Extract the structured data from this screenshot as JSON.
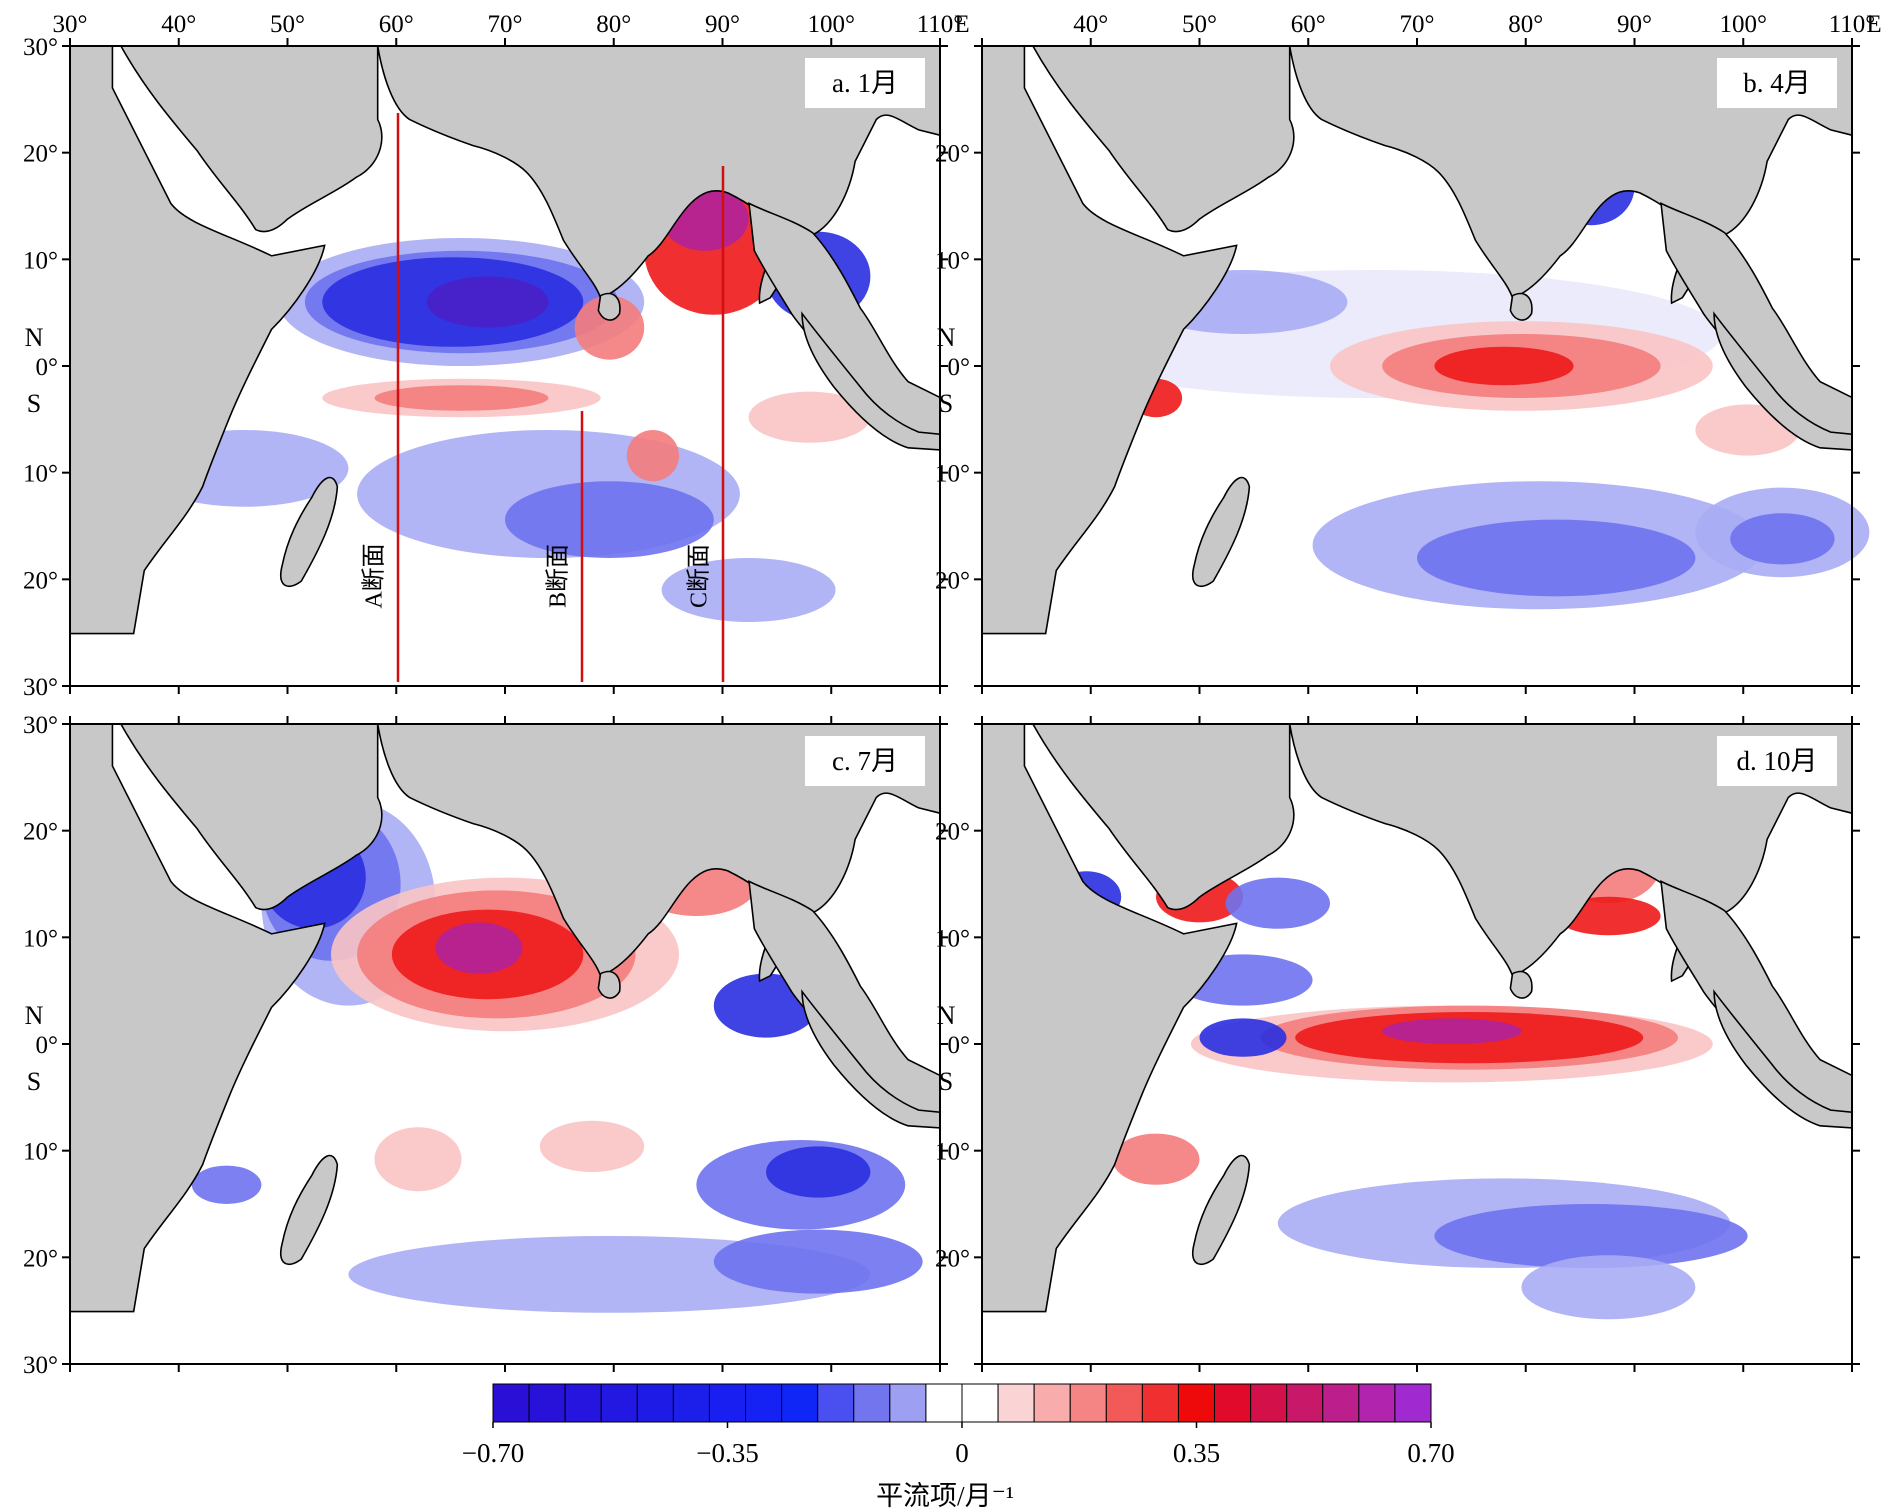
{
  "figure": {
    "lon_ticks_top": [
      "30°",
      "40°",
      "50°",
      "60°",
      "70°",
      "80°",
      "90°",
      "100°",
      "110°"
    ],
    "lon_ticks_top_right": [
      "40°",
      "50°",
      "60°",
      "70°",
      "80°",
      "90°",
      "100°",
      "110°"
    ],
    "lon_unit": "E",
    "lat_ticks": [
      "30°",
      "20°",
      "10°",
      "0°",
      "10°",
      "20°",
      "30°"
    ],
    "hemisphere": {
      "north": "N",
      "south": "S"
    },
    "panels": [
      {
        "id": "a",
        "label": "a. 1月"
      },
      {
        "id": "b",
        "label": "b. 4月"
      },
      {
        "id": "c",
        "label": "c. 7月"
      },
      {
        "id": "d",
        "label": "d. 10月"
      }
    ],
    "sections": [
      {
        "label": "A断面",
        "lon": 60
      },
      {
        "label": "B断面",
        "lon": 77
      },
      {
        "label": "C断面",
        "lon": 90
      }
    ],
    "colorbar": {
      "ticks": [
        "−0.70",
        "−0.35",
        "0",
        "0.35",
        "0.70"
      ],
      "title": "平流项/月⁻¹",
      "range": [
        -0.7,
        0.7
      ],
      "colors": [
        "#2a0fd6",
        "#2812da",
        "#2515de",
        "#2218e2",
        "#1f1be6",
        "#1c1eea",
        "#191ff0",
        "#1522f3",
        "#1026f6",
        "#4a50f0",
        "#7275ee",
        "#9c9ff2",
        "#ffffff",
        "#ffffff",
        "#fad4d4",
        "#f8acac",
        "#f58585",
        "#f25a5a",
        "#f03030",
        "#ee0a0a",
        "#e20a2a",
        "#d4104a",
        "#c8186a",
        "#bc1e8c",
        "#b024ae",
        "#a02ad0"
      ]
    },
    "colors": {
      "land": "#c8c8c8",
      "ocean": "#ffffff",
      "section_line": "#d01010"
    }
  }
}
